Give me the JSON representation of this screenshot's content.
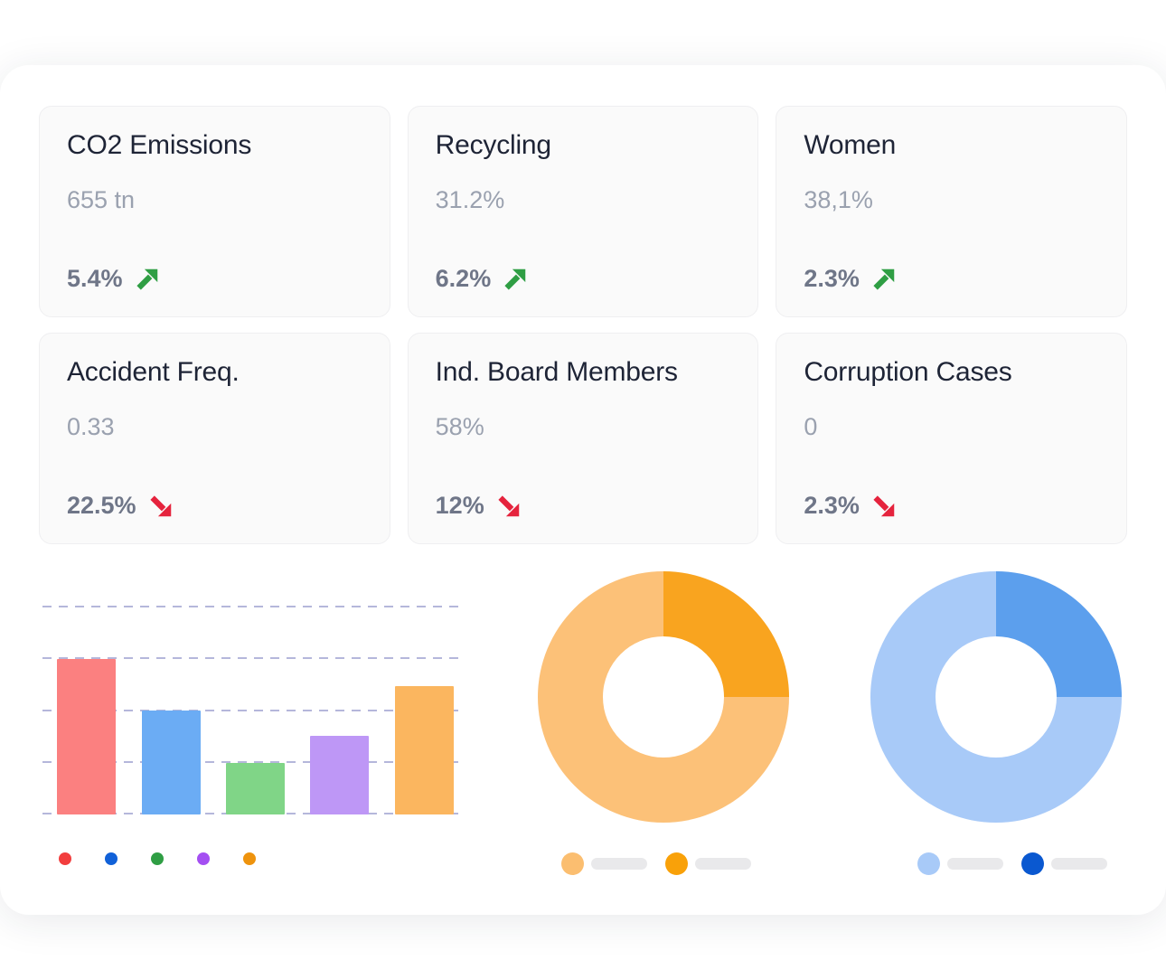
{
  "cards": [
    {
      "title": "CO2 Emissions",
      "value": "655 tn",
      "delta": "5.4%",
      "trend": "up"
    },
    {
      "title": "Recycling",
      "value": "31.2%",
      "delta": "6.2%",
      "trend": "up"
    },
    {
      "title": "Women",
      "value": "38,1%",
      "delta": "2.3%",
      "trend": "up"
    },
    {
      "title": "Accident Freq.",
      "value": "0.33",
      "delta": "22.5%",
      "trend": "down"
    },
    {
      "title": "Ind. Board Members",
      "value": "58%",
      "delta": "12%",
      "trend": "down"
    },
    {
      "title": "Corruption Cases",
      "value": "0",
      "delta": "2.3%",
      "trend": "down"
    }
  ],
  "icons": {
    "trend_up": "arrow-up-right",
    "trend_down": "arrow-down-right"
  },
  "colors": {
    "panel_bg": "#ffffff",
    "card_bg": "#fafafa",
    "card_border": "#efeff1",
    "card_title": "#1e2436",
    "card_value": "#9aa1af",
    "card_delta": "#6f7688",
    "trend_up": "#2f9e44",
    "trend_down": "#e5233d",
    "gridline": "#b5b7db",
    "legend_pill": "#e9e9eb"
  },
  "chart_data": [
    {
      "id": "bar-chart",
      "type": "bar",
      "title": "",
      "xlabel": "",
      "ylabel": "",
      "categories": [
        "red",
        "blue",
        "green",
        "purple",
        "orange"
      ],
      "values": [
        75,
        50,
        25,
        38,
        62
      ],
      "ylim": [
        0,
        100
      ],
      "gridline_count": 5,
      "grid": "horizontal-dashed",
      "legend_position": "bottom",
      "bar_colors": [
        "#fb8080",
        "#6bacf4",
        "#80d587",
        "#be97f6",
        "#fbb65f"
      ],
      "legend_dot_colors": [
        "#f23e3e",
        "#1161d8",
        "#2f9e44",
        "#a44ff2",
        "#ee930d"
      ],
      "note": "no axis tick labels visible; values estimated from gridlines (25 per interval)"
    },
    {
      "id": "donut-orange",
      "type": "pie",
      "donut": true,
      "title": "",
      "start_angle_deg": 0,
      "segments": [
        {
          "name": "dark-orange",
          "value_pct": 25,
          "color": "#f9a41f"
        },
        {
          "name": "light-orange",
          "value_pct": 75,
          "color": "#fcc178"
        }
      ],
      "legend_position": "bottom",
      "legend": [
        {
          "dot_color": "#fbbe70",
          "label": ""
        },
        {
          "dot_color": "#f9a109",
          "label": ""
        }
      ],
      "legend_note": "labels are blank gray placeholder pills"
    },
    {
      "id": "donut-blue",
      "type": "pie",
      "donut": true,
      "title": "",
      "start_angle_deg": 0,
      "segments": [
        {
          "name": "dark-blue",
          "value_pct": 25,
          "color": "#5c9fed"
        },
        {
          "name": "light-blue",
          "value_pct": 75,
          "color": "#a8caf8"
        }
      ],
      "legend_position": "bottom",
      "legend": [
        {
          "dot_color": "#a8caf8",
          "label": ""
        },
        {
          "dot_color": "#0a58d0",
          "label": ""
        }
      ],
      "legend_note": "labels are blank gray placeholder pills"
    }
  ]
}
